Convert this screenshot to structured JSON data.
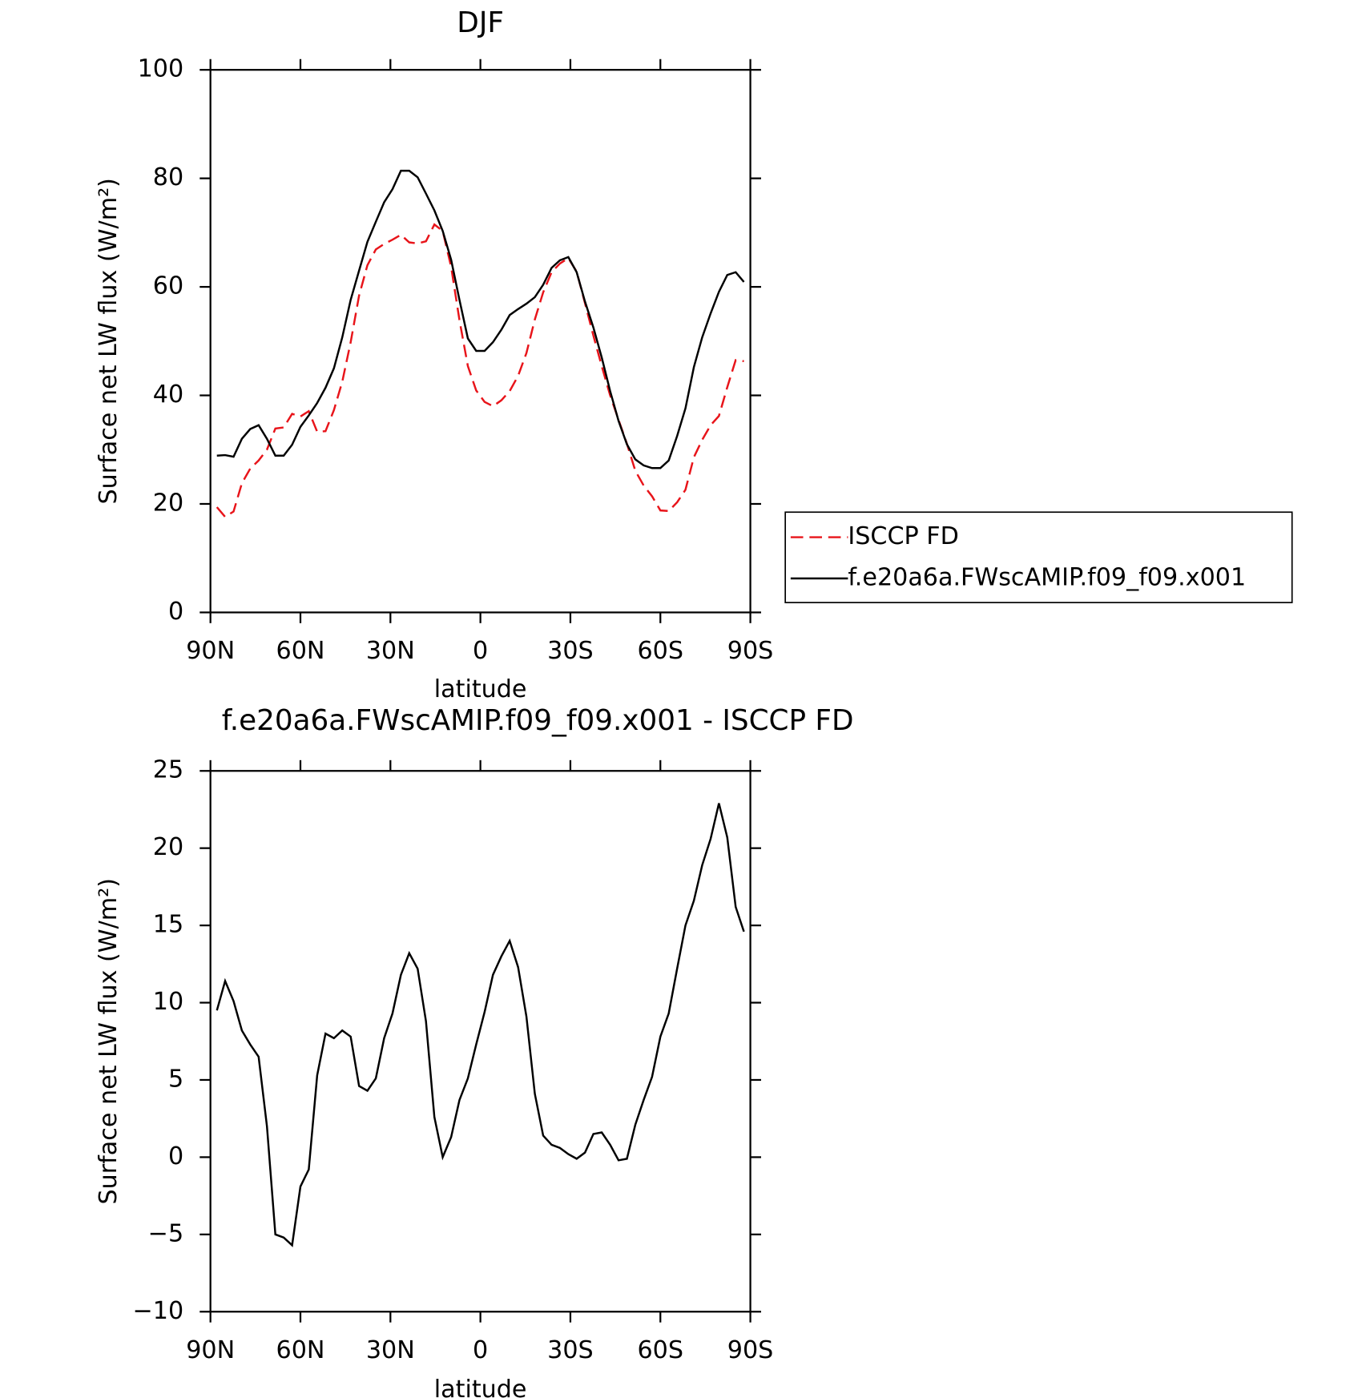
{
  "chart_data": [
    {
      "type": "line",
      "title": "DJF",
      "xlabel": "latitude",
      "ylabel": "Surface net LW flux (W/m²)",
      "x": [
        87.86,
        85.1,
        82.31,
        79.53,
        76.74,
        73.95,
        71.16,
        68.37,
        65.58,
        62.79,
        60.0,
        57.21,
        54.42,
        51.63,
        48.84,
        46.05,
        43.25,
        40.46,
        37.67,
        34.88,
        32.09,
        29.3,
        26.51,
        23.72,
        20.93,
        18.14,
        15.35,
        12.56,
        9.77,
        6.98,
        4.19,
        1.4,
        -1.4,
        -4.19,
        -6.98,
        -9.77,
        -12.56,
        -15.35,
        -18.14,
        -20.93,
        -23.72,
        -26.51,
        -29.3,
        -32.09,
        -34.88,
        -37.67,
        -40.46,
        -43.25,
        -46.05,
        -48.84,
        -51.63,
        -54.42,
        -57.21,
        -60.0,
        -62.79,
        -65.58,
        -68.37,
        -71.16,
        -73.95,
        -76.74,
        -79.53,
        -82.31,
        -85.1,
        -87.86
      ],
      "series": [
        {
          "name": "ISCCP FD",
          "color": "#e8141a",
          "line_style": "dashed",
          "values": [
            19.4,
            17.6,
            18.6,
            23.8,
            26.5,
            28,
            30,
            33.9,
            34.1,
            36.6,
            36.1,
            37.1,
            33.3,
            33.4,
            37.3,
            42.5,
            49.8,
            58.4,
            64,
            66.9,
            67.9,
            68.7,
            69.6,
            68.2,
            68,
            68.4,
            71.5,
            70.3,
            63.7,
            53.9,
            45.4,
            40.9,
            38.8,
            38,
            39.1,
            40.8,
            43.6,
            47.8,
            54,
            59,
            62.7,
            64.3,
            65.3,
            62.8,
            57,
            51,
            45.4,
            40,
            35.5,
            31.1,
            26.1,
            23.4,
            21.4,
            18.8,
            18.7,
            20.3,
            22.6,
            28.6,
            31.8,
            34.5,
            36.2,
            41.5,
            46.5,
            46.3
          ]
        },
        {
          "name": "f.e20a6a.FWscAMIP.f09_f09.x001",
          "color": "#000000",
          "line_style": "solid",
          "values": [
            28.9,
            29,
            28.7,
            32,
            33.8,
            34.5,
            32,
            28.9,
            28.9,
            30.9,
            34.2,
            36.3,
            38.6,
            41.4,
            45,
            50.7,
            57.6,
            63,
            68.3,
            72,
            75.6,
            78,
            81.4,
            81.4,
            80.2,
            77.2,
            74.1,
            70.3,
            65,
            57.6,
            50.5,
            48.2,
            48.2,
            49.8,
            52.1,
            54.8,
            55.9,
            56.9,
            58.1,
            60.4,
            63.5,
            64.9,
            65.5,
            62.7,
            57.3,
            52.5,
            47,
            40.8,
            35.3,
            31,
            28.2,
            27.1,
            26.6,
            26.6,
            28,
            32.5,
            37.6,
            45.2,
            50.7,
            55.1,
            59.1,
            62.2,
            62.7,
            60.9
          ]
        }
      ],
      "xlim": [
        90,
        -90
      ],
      "xticks": [
        {
          "value": 90,
          "label": "90N"
        },
        {
          "value": 60,
          "label": "60N"
        },
        {
          "value": 30,
          "label": "30N"
        },
        0,
        {
          "value": -30,
          "label": "30S"
        },
        {
          "value": -60,
          "label": "60S"
        },
        {
          "value": -90,
          "label": "90S"
        }
      ],
      "ylim": [
        0,
        100
      ],
      "yticks": [
        0,
        20,
        40,
        60,
        80,
        100
      ],
      "legend": "right"
    },
    {
      "type": "line",
      "title": "f.e20a6a.FWscAMIP.f09_f09.x001 - ISCCP FD",
      "xlabel": "latitude",
      "ylabel": "Surface net LW flux (W/m²)",
      "x": [
        87.86,
        85.1,
        82.31,
        79.53,
        76.74,
        73.95,
        71.16,
        68.37,
        65.58,
        62.79,
        60.0,
        57.21,
        54.42,
        51.63,
        48.84,
        46.05,
        43.25,
        40.46,
        37.67,
        34.88,
        32.09,
        29.3,
        26.51,
        23.72,
        20.93,
        18.14,
        15.35,
        12.56,
        9.77,
        6.98,
        4.19,
        1.4,
        -1.4,
        -4.19,
        -6.98,
        -9.77,
        -12.56,
        -15.35,
        -18.14,
        -20.93,
        -23.72,
        -26.51,
        -29.3,
        -32.09,
        -34.88,
        -37.67,
        -40.46,
        -43.25,
        -46.05,
        -48.84,
        -51.63,
        -54.42,
        -57.21,
        -60.0,
        -62.79,
        -65.58,
        -68.37,
        -71.16,
        -73.95,
        -76.74,
        -79.53,
        -82.31,
        -85.1,
        -87.86
      ],
      "series": [
        {
          "color": "#000000",
          "line_style": "solid",
          "values": [
            9.5,
            11.4,
            10.1,
            8.2,
            7.3,
            6.5,
            2,
            -5,
            -5.2,
            -5.7,
            -1.9,
            -0.8,
            5.3,
            8,
            7.7,
            8.2,
            7.8,
            4.6,
            4.3,
            5.1,
            7.7,
            9.3,
            11.8,
            13.2,
            12.2,
            8.8,
            2.6,
            0,
            1.3,
            3.7,
            5.1,
            7.3,
            9.4,
            11.8,
            13,
            14,
            12.3,
            9.1,
            4.1,
            1.4,
            0.8,
            0.6,
            0.2,
            -0.1,
            0.3,
            1.5,
            1.6,
            0.8,
            -0.2,
            -0.1,
            2.1,
            3.7,
            5.2,
            7.8,
            9.3,
            12.2,
            15,
            16.6,
            18.9,
            20.6,
            22.9,
            20.7,
            16.2,
            14.6
          ]
        }
      ],
      "xlim": [
        90,
        -90
      ],
      "xticks": [
        {
          "value": 90,
          "label": "90N"
        },
        {
          "value": 60,
          "label": "60N"
        },
        {
          "value": 30,
          "label": "30N"
        },
        0,
        {
          "value": -30,
          "label": "30S"
        },
        {
          "value": -60,
          "label": "60S"
        },
        {
          "value": -90,
          "label": "90S"
        }
      ],
      "ylim": [
        -10,
        25
      ],
      "yticks": [
        {
          "value": -10,
          "label": "−10"
        },
        {
          "value": -5,
          "label": "−5"
        },
        0,
        5,
        10,
        15,
        20,
        25
      ]
    }
  ]
}
